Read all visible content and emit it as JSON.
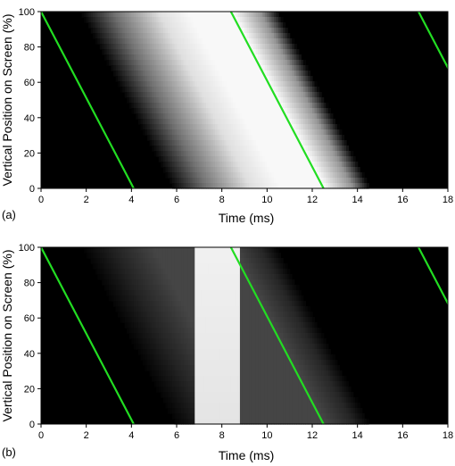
{
  "chart_data": [
    {
      "type": "heatmap",
      "panel_label": "(a)",
      "xlabel": "Time (ms)",
      "ylabel": "Vertical Position on Screen (%)",
      "xlim": [
        0,
        18
      ],
      "ylim": [
        0,
        100
      ],
      "xticks": [
        "0",
        "2",
        "4",
        "6",
        "8",
        "10",
        "12",
        "14",
        "16",
        "18"
      ],
      "yticks": [
        "0",
        "20",
        "40",
        "60",
        "80",
        "100"
      ],
      "grid": false,
      "intensity_profile": {
        "description_points_at_top": [
          [
            0,
            0
          ],
          [
            1.7,
            0
          ],
          [
            3.2,
            0.45
          ],
          [
            5.2,
            0.9
          ],
          [
            6.5,
            1
          ],
          [
            8.5,
            1
          ],
          [
            9.7,
            0.6
          ],
          [
            10.5,
            0
          ],
          [
            18,
            0
          ]
        ],
        "shift_per_full_height_ms": 4.1
      },
      "green_lines": [
        {
          "x_top": 0.0,
          "x_bottom": 4.1
        },
        {
          "x_top": 8.4,
          "x_bottom": 12.5
        },
        {
          "x_top": 16.7,
          "x_bottom": 20.8
        }
      ],
      "line_color": "#22dd22"
    },
    {
      "type": "heatmap",
      "panel_label": "(b)",
      "xlabel": "Time (ms)",
      "ylabel": "Vertical Position on Screen (%)",
      "xlim": [
        0,
        18
      ],
      "ylim": [
        0,
        100
      ],
      "xticks": [
        "0",
        "2",
        "4",
        "6",
        "8",
        "10",
        "12",
        "14",
        "16",
        "18"
      ],
      "yticks": [
        "0",
        "20",
        "40",
        "60",
        "80",
        "100"
      ],
      "grid": false,
      "intensity_profile": {
        "dim_level": 0.28,
        "bright_window_ms": [
          6.8,
          8.8
        ],
        "bright_level": 0.97,
        "shift_per_full_height_ms": 4.1
      },
      "green_lines": [
        {
          "x_top": 0.0,
          "x_bottom": 4.1
        },
        {
          "x_top": 8.4,
          "x_bottom": 12.5
        },
        {
          "x_top": 16.7,
          "x_bottom": 20.8
        }
      ],
      "line_color": "#22dd22"
    }
  ]
}
